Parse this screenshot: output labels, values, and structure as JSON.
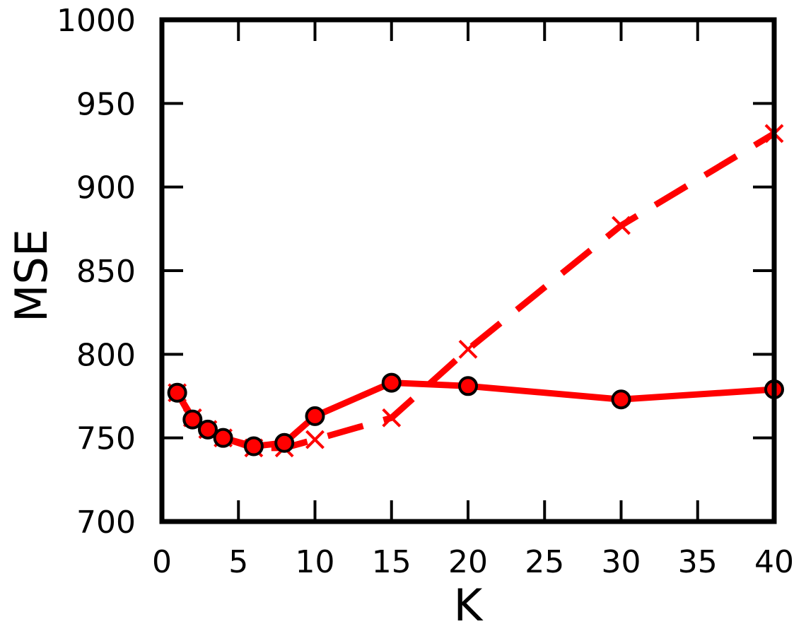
{
  "chart_data": {
    "type": "line",
    "xlabel": "K",
    "ylabel": "MSE",
    "xlim": [
      0,
      40
    ],
    "ylim": [
      700,
      1000
    ],
    "x_ticks": [
      "0",
      "5",
      "10",
      "15",
      "20",
      "25",
      "30",
      "35",
      "40"
    ],
    "y_ticks": [
      "700",
      "750",
      "800",
      "850",
      "900",
      "950",
      "1000"
    ],
    "grid": false,
    "legend": "none",
    "series": [
      {
        "style": "solid",
        "marker": "circle",
        "color": "#ff0000",
        "x": [
          1,
          2,
          3,
          4,
          6,
          8,
          10,
          15,
          20,
          30,
          40
        ],
        "y": [
          777,
          761,
          755,
          750,
          745,
          747,
          763,
          783,
          781,
          773,
          779
        ]
      },
      {
        "style": "dashed",
        "marker": "x",
        "color": "#ff0000",
        "x": [
          1,
          2,
          3,
          4,
          6,
          8,
          10,
          15,
          20,
          30,
          40
        ],
        "y": [
          777,
          762,
          755,
          750,
          744,
          744,
          749,
          762,
          803,
          877,
          932
        ]
      }
    ]
  }
}
